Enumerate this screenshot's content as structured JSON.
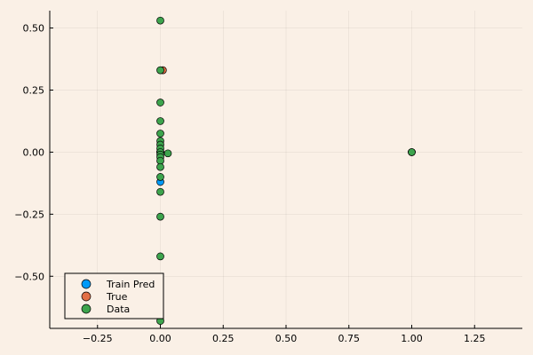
{
  "chart_data": {
    "type": "scatter",
    "title": "",
    "xlabel": "",
    "ylabel": "",
    "xlim": [
      -0.44,
      1.44
    ],
    "ylim": [
      -0.71,
      0.57
    ],
    "xticks": [
      -0.25,
      0.0,
      0.25,
      0.5,
      0.75,
      1.0,
      1.25
    ],
    "yticks": [
      -0.5,
      -0.25,
      0.0,
      0.25,
      0.5
    ],
    "xtick_labels": [
      "−0.25",
      "0.00",
      "0.25",
      "0.50",
      "0.75",
      "1.00",
      "1.25"
    ],
    "ytick_labels": [
      "−0.50",
      "−0.25",
      "0.00",
      "0.25",
      "0.50"
    ],
    "grid": true,
    "legend_position": "bottom-left",
    "series": [
      {
        "name": "Train Pred",
        "color": "#009af9",
        "points": [
          [
            0.0,
            -0.12
          ],
          [
            0.0,
            0.0
          ],
          [
            1.0,
            0.0
          ]
        ]
      },
      {
        "name": "True",
        "color": "#e26f46",
        "points": [
          [
            0.01,
            0.33
          ],
          [
            0.0,
            0.0
          ],
          [
            1.0,
            0.0
          ]
        ]
      },
      {
        "name": "Data",
        "color": "#3da44d",
        "points": [
          [
            0.0,
            0.53
          ],
          [
            0.0,
            0.33
          ],
          [
            0.0,
            0.2
          ],
          [
            0.0,
            0.125
          ],
          [
            0.0,
            0.075
          ],
          [
            0.0,
            0.045
          ],
          [
            0.0,
            0.03
          ],
          [
            0.0,
            0.015
          ],
          [
            0.0,
            0.0
          ],
          [
            0.0,
            -0.01
          ],
          [
            0.0,
            -0.02
          ],
          [
            0.0,
            -0.035
          ],
          [
            0.0,
            -0.06
          ],
          [
            0.0,
            -0.1
          ],
          [
            0.0,
            -0.16
          ],
          [
            0.0,
            -0.26
          ],
          [
            0.0,
            -0.42
          ],
          [
            0.0,
            -0.68
          ],
          [
            0.03,
            -0.005
          ],
          [
            1.0,
            0.0
          ]
        ]
      }
    ]
  }
}
